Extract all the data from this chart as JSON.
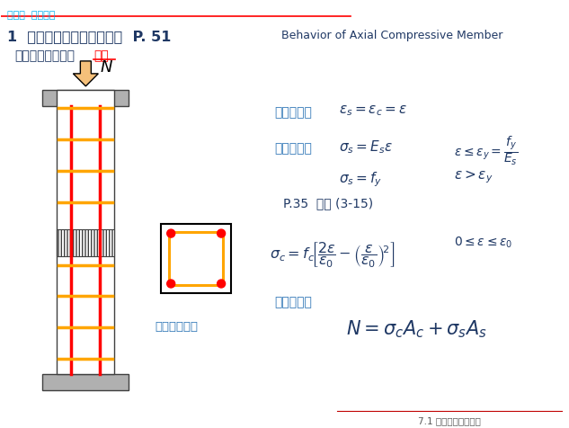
{
  "bg_color": "#ffffff",
  "header_text": "第七章  受压构件",
  "header_color": "#00b0f0",
  "header_line_color": "#ff0000",
  "title_text": "1  轴心受压构件的受力性能  P. 51",
  "title_color": "#1f3864",
  "title_english": "Behavior of Axial Compressive Member",
  "title_english_color": "#1f3864",
  "subtitle_text1": "矩形截面轴心受压",
  "subtitle_short_col": "短柱",
  "subtitle_color": "#1f3864",
  "subtitle_short_color": "#ff0000",
  "footer_text": "7.1 轴心受压构件概述",
  "footer_color": "#595959",
  "col_color_red": "#ff0000",
  "col_color_orange": "#ffa500",
  "col_color_gray": "#808080",
  "rebar_color": "#ff0000",
  "arrow_color": "#f5c07a"
}
